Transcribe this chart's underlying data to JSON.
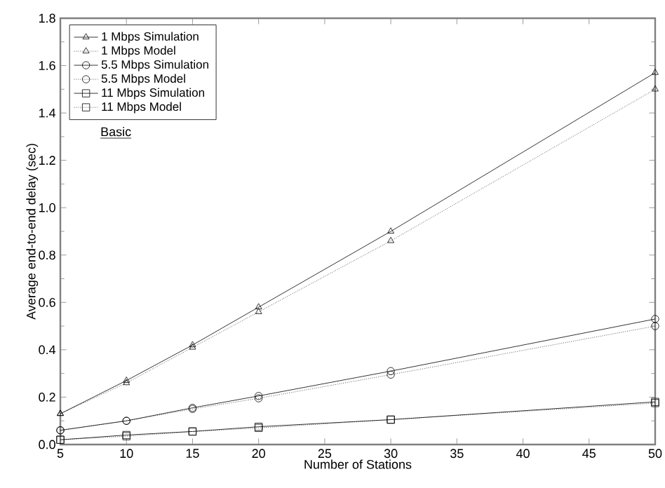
{
  "chart_data": {
    "type": "line",
    "xlabel": "Number of Stations",
    "ylabel": "Average end-to-end delay (sec)",
    "x": [
      5,
      10,
      15,
      20,
      30,
      50
    ],
    "series": [
      {
        "name": "1 Mbps Simulation",
        "color": "#000000",
        "marker": "triangle",
        "line_style": "solid",
        "values": [
          0.13,
          0.27,
          0.42,
          0.58,
          0.9,
          1.57
        ]
      },
      {
        "name": "1 Mbps Model",
        "color": "#000000",
        "marker": "triangle",
        "line_style": "dotted",
        "values": [
          0.13,
          0.26,
          0.41,
          0.56,
          0.86,
          1.5
        ]
      },
      {
        "name": "5.5 Mbps Simulation",
        "color": "#000000",
        "marker": "circle",
        "line_style": "solid",
        "values": [
          0.06,
          0.1,
          0.155,
          0.205,
          0.31,
          0.53
        ]
      },
      {
        "name": "5.5 Mbps Model",
        "color": "#000000",
        "marker": "circle",
        "line_style": "dotted",
        "values": [
          0.06,
          0.1,
          0.15,
          0.195,
          0.295,
          0.5
        ]
      },
      {
        "name": "11 Mbps Simulation",
        "color": "#000000",
        "marker": "square",
        "line_style": "solid",
        "values": [
          0.02,
          0.04,
          0.055,
          0.075,
          0.105,
          0.18
        ]
      },
      {
        "name": "11 Mbps Model",
        "color": "#000000",
        "marker": "square",
        "line_style": "dotted",
        "values": [
          0.02,
          0.035,
          0.055,
          0.07,
          0.105,
          0.175
        ]
      }
    ],
    "xlim": [
      5,
      50
    ],
    "xticks": [
      5,
      10,
      15,
      20,
      25,
      30,
      35,
      40,
      45,
      50
    ],
    "ylim": [
      0,
      1.8
    ],
    "yticks": [
      {
        "value": 0,
        "label": "0.0"
      },
      0.2,
      0.4,
      0.6,
      0.8,
      {
        "value": 1,
        "label": "1.0"
      },
      1.2,
      1.4,
      1.6,
      1.8
    ],
    "grid": false,
    "legend": "top left",
    "annotations": [
      "Basic"
    ]
  }
}
